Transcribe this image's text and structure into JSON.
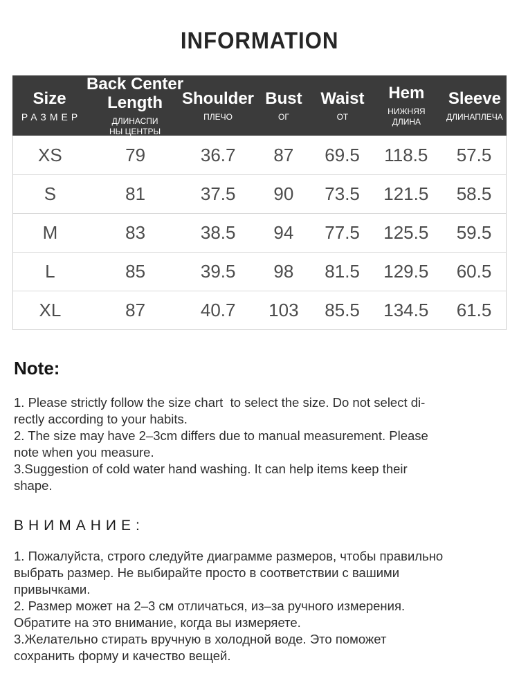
{
  "title": "INFORMATION",
  "table": {
    "columns": [
      {
        "en": "Size",
        "ru": "РАЗМЕР"
      },
      {
        "en": "Back Center\nLength",
        "ru": "ДЛИНАСПИ\nНЫ ЦЕНТРЫ"
      },
      {
        "en": "Shoulder",
        "ru": "ПЛЕЧО"
      },
      {
        "en": "Bust",
        "ru": "ОГ"
      },
      {
        "en": "Waist",
        "ru": "ОТ"
      },
      {
        "en": "Hem",
        "ru": "НИЖНЯЯ\nДЛИНА"
      },
      {
        "en": "Sleeve",
        "ru": "ДЛИНАПЛЕЧА"
      }
    ],
    "rows": [
      {
        "size": "XS",
        "values": [
          "79",
          "36.7",
          "87",
          "69.5",
          "118.5",
          "57.5"
        ]
      },
      {
        "size": "S",
        "values": [
          "81",
          "37.5",
          "90",
          "73.5",
          "121.5",
          "58.5"
        ]
      },
      {
        "size": "M",
        "values": [
          "83",
          "38.5",
          "94",
          "77.5",
          "125.5",
          "59.5"
        ]
      },
      {
        "size": "L",
        "values": [
          "85",
          "39.5",
          "98",
          "81.5",
          "129.5",
          "60.5"
        ]
      },
      {
        "size": "XL",
        "values": [
          "87",
          "40.7",
          "103",
          "85.5",
          "134.5",
          "61.5"
        ]
      }
    ]
  },
  "notes_en": {
    "heading": "Note:",
    "items": [
      "1. Please strictly follow the size chart  to select the size. Do not select di-\nrectly according to your habits.",
      "2. The size may have 2–3cm differs due to manual measurement. Please\nnote when you measure.",
      "3.Suggestion of cold water hand washing. It can help items keep their\nshape."
    ]
  },
  "notes_ru": {
    "heading": "ВНИМАНИЕ:",
    "items": [
      "1. Пожалуйста, строго следуйте диаграмме размеров, чтобы правильно\nвыбрать размер. Не выбирайте просто в соответствии с вашими\nпривычками.",
      "2. Размер может на 2–3 см отличаться, из–за ручного измерения.\nОбратите на это внимание, когда вы измеряете.",
      "3.Желательно стирать вручную в холодной воде. Это поможет\nсохранить форму и качество вещей."
    ]
  },
  "colors": {
    "header_bg": "#3b3b3b",
    "header_text": "#ffffff",
    "title_text": "#262626",
    "body_text": "#4c4c4c",
    "note_text": "#2e2e2e",
    "table_border": "#cfcfcf",
    "row_divider": "#d9d9d9"
  }
}
